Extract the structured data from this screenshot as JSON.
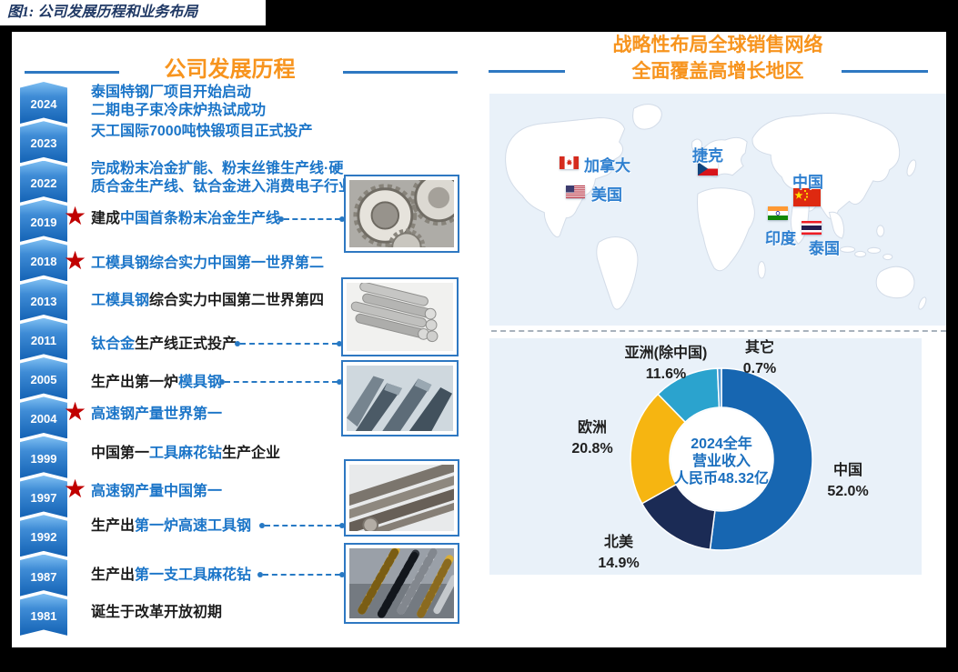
{
  "figure_title": "图1:  公司发展历程和业务布局",
  "left_panel": {
    "title": "公司发展历程",
    "timeline": [
      {
        "year": "2024",
        "star": false,
        "lines": [
          [
            {
              "t": "泰国特钢厂项目开始启动",
              "c": "blue"
            }
          ],
          [
            {
              "t": "二期电子束冷床炉热试成功",
              "c": "blue"
            }
          ]
        ]
      },
      {
        "year": "2023",
        "star": false,
        "lines": [
          [
            {
              "t": "天工国际7000吨快锻项目正式投产",
              "c": "blue"
            }
          ]
        ]
      },
      {
        "year": "2022",
        "star": false,
        "lines": [
          [
            {
              "t": "完成粉末冶金扩能、粉末丝锥生产线·硬",
              "c": "blue"
            }
          ],
          [
            {
              "t": "质合金生产线、钛合金进入消费电子行业",
              "c": "blue"
            }
          ]
        ]
      },
      {
        "year": "2019",
        "star": true,
        "lines": [
          [
            {
              "t": "建成",
              "c": "black"
            },
            {
              "t": "中国首条粉末冶金生产线",
              "c": "blue"
            }
          ]
        ]
      },
      {
        "year": "2018",
        "star": true,
        "lines": [
          [
            {
              "t": "工模具钢综合实力中国第一世界第二",
              "c": "blue"
            }
          ]
        ]
      },
      {
        "year": "2013",
        "star": false,
        "lines": [
          [
            {
              "t": "工模具钢",
              "c": "blue"
            },
            {
              "t": "综合实力中国第二世界第四",
              "c": "black"
            }
          ]
        ]
      },
      {
        "year": "2011",
        "star": false,
        "lines": [
          [
            {
              "t": "钛合金",
              "c": "blue"
            },
            {
              "t": "生产线正式投产",
              "c": "black"
            }
          ]
        ]
      },
      {
        "year": "2005",
        "star": false,
        "lines": [
          [
            {
              "t": "生产出第一炉",
              "c": "black"
            },
            {
              "t": "模具钢",
              "c": "blue"
            }
          ]
        ]
      },
      {
        "year": "2004",
        "star": true,
        "lines": [
          [
            {
              "t": "高速钢产量世界第一",
              "c": "blue"
            }
          ]
        ]
      },
      {
        "year": "1999",
        "star": false,
        "lines": [
          [
            {
              "t": "中国第一",
              "c": "black"
            },
            {
              "t": "工具麻花钻",
              "c": "blue"
            },
            {
              "t": "生产企业",
              "c": "black"
            }
          ]
        ]
      },
      {
        "year": "1997",
        "star": true,
        "lines": [
          [
            {
              "t": "高速钢产量中国第一",
              "c": "blue"
            }
          ]
        ]
      },
      {
        "year": "1992",
        "star": false,
        "lines": [
          [
            {
              "t": "生产出",
              "c": "black"
            },
            {
              "t": "第一炉高速工具钢",
              "c": "blue"
            }
          ]
        ]
      },
      {
        "year": "1987",
        "star": false,
        "lines": [
          [
            {
              "t": "生产出",
              "c": "black"
            },
            {
              "t": "第一支工具麻花钻",
              "c": "blue"
            }
          ]
        ]
      },
      {
        "year": "1981",
        "star": false,
        "lines": [
          [
            {
              "t": "诞生于改革开放初期",
              "c": "black"
            }
          ]
        ]
      }
    ],
    "photos": [
      {
        "icon": "powder-metallurgy-parts-photo"
      },
      {
        "icon": "titanium-round-bars-photo"
      },
      {
        "icon": "die-steel-blocks-photo"
      },
      {
        "icon": "high-speed-steel-bars-photo"
      },
      {
        "icon": "twist-drill-bits-photo"
      }
    ]
  },
  "right_panel": {
    "title_line1": "战略性布局全球销售网络",
    "title_line2": "全面覆盖高增长地区",
    "map_flags": [
      {
        "code": "ca",
        "icon": "canada-flag-icon",
        "label": "加拿大"
      },
      {
        "code": "us",
        "icon": "usa-flag-icon",
        "label": "美国"
      },
      {
        "code": "cz",
        "icon": "czech-flag-icon",
        "label": "捷克"
      },
      {
        "code": "cn",
        "icon": "china-flag-icon",
        "label": "中国"
      },
      {
        "code": "in",
        "icon": "india-flag-icon",
        "label": "印度"
      },
      {
        "code": "th",
        "icon": "thailand-flag-icon",
        "label": "泰国"
      }
    ]
  },
  "chart_data": {
    "type": "pie",
    "subtype": "donut",
    "title": "2024全年营业收入人民币48.32亿",
    "center_lines": [
      "2024全年",
      "营业收入",
      "人民币48.32亿"
    ],
    "slices": [
      {
        "label": "中国",
        "value": 52.0,
        "color": "#1766B1"
      },
      {
        "label": "北美",
        "value": 14.9,
        "color": "#1B2B55"
      },
      {
        "label": "欧洲",
        "value": 20.8,
        "color": "#F6B511"
      },
      {
        "label": "亚洲(除中国)",
        "value": 11.6,
        "color": "#2BA3CE"
      },
      {
        "label": "其它",
        "value": 0.7,
        "color": "#4E95D1"
      }
    ],
    "legend_position": "labels-around-donut"
  },
  "colors": {
    "accent_orange": "#F7941E",
    "accent_blue": "#2E78C2",
    "timeline_text_blue": "#1B75C8",
    "star_red": "#C00000",
    "panel_light_blue": "#E9F1F9",
    "caption_navy": "#1F3864"
  }
}
